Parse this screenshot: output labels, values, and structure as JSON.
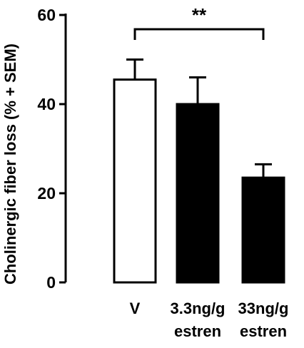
{
  "chart_data": {
    "type": "bar",
    "title": "",
    "xlabel": "",
    "ylabel": "Cholinergic fiber loss (% + SEM)",
    "ylim": [
      0,
      60
    ],
    "yticks": [
      0,
      20,
      40,
      60
    ],
    "categories": [
      [
        "V"
      ],
      [
        "3.3ng/g",
        "estren"
      ],
      [
        "33ng/g",
        "estren"
      ]
    ],
    "values": [
      45.5,
      40,
      23.5
    ],
    "errors": [
      4.5,
      6,
      3
    ],
    "fill_colors": [
      "#ffffff",
      "#000000",
      "#000000"
    ],
    "significance": {
      "label": "**",
      "between": [
        0,
        2
      ]
    }
  }
}
